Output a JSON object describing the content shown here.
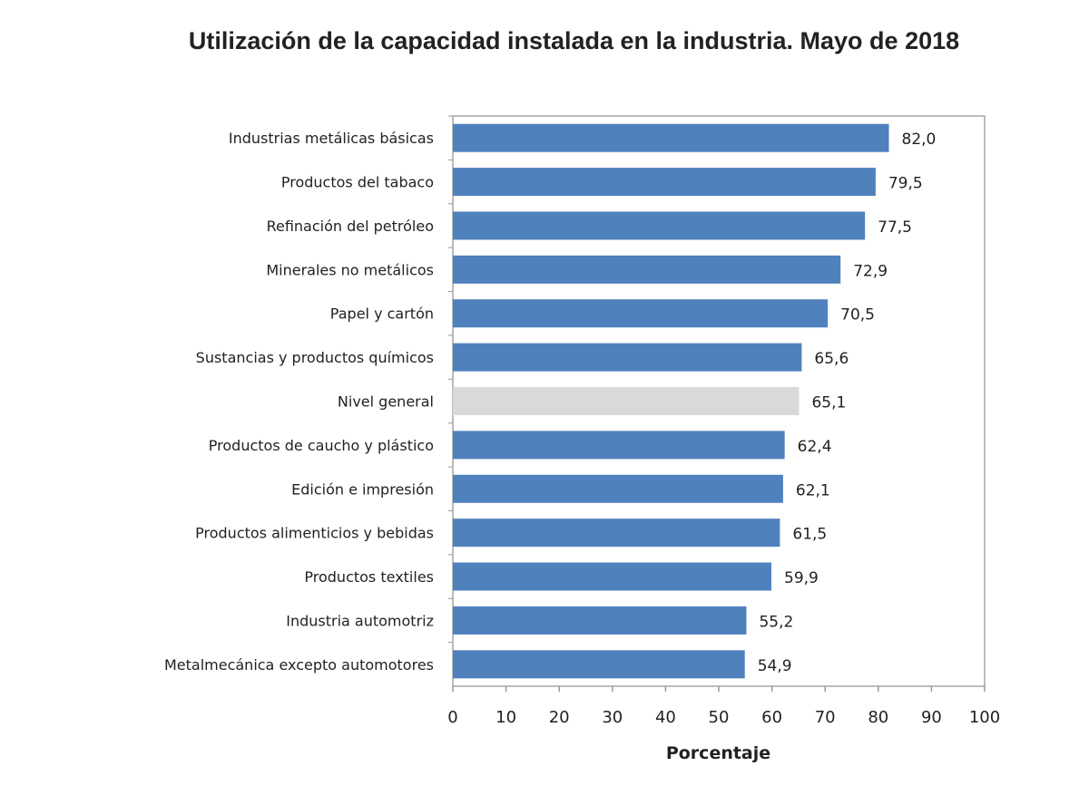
{
  "chart_data": {
    "type": "bar",
    "orientation": "horizontal",
    "title": "Utilización de la capacidad instalada en la industria. Mayo de 2018",
    "xlabel": "Porcentaje",
    "ylabel": "",
    "xlim": [
      0,
      100
    ],
    "xticks": [
      0,
      10,
      20,
      30,
      40,
      50,
      60,
      70,
      80,
      90,
      100
    ],
    "grid": false,
    "categories": [
      "Industrias metálicas básicas",
      "Productos del tabaco",
      "Refinación del petróleo",
      "Minerales no metálicos",
      "Papel y cartón",
      "Sustancias y productos químicos",
      "Nivel general",
      "Productos de caucho y plástico",
      "Edición e impresión",
      "Productos alimenticios y bebidas",
      "Productos textiles",
      "Industria automotriz",
      "Metalmecánica excepto automotores"
    ],
    "values": [
      82.0,
      79.5,
      77.5,
      72.9,
      70.5,
      65.6,
      65.1,
      62.4,
      62.1,
      61.5,
      59.9,
      55.2,
      54.9
    ],
    "data_labels": [
      "82,0",
      "79,5",
      "77,5",
      "72,9",
      "70,5",
      "65,6",
      "65,1",
      "62,4",
      "62,1",
      "61,5",
      "59,9",
      "55,2",
      "54,9"
    ],
    "colors": {
      "bar": "#4f81bd",
      "highlight": "#d9d9d9",
      "highlight_category": "Nivel general",
      "frame": "#a6a6a6"
    }
  }
}
